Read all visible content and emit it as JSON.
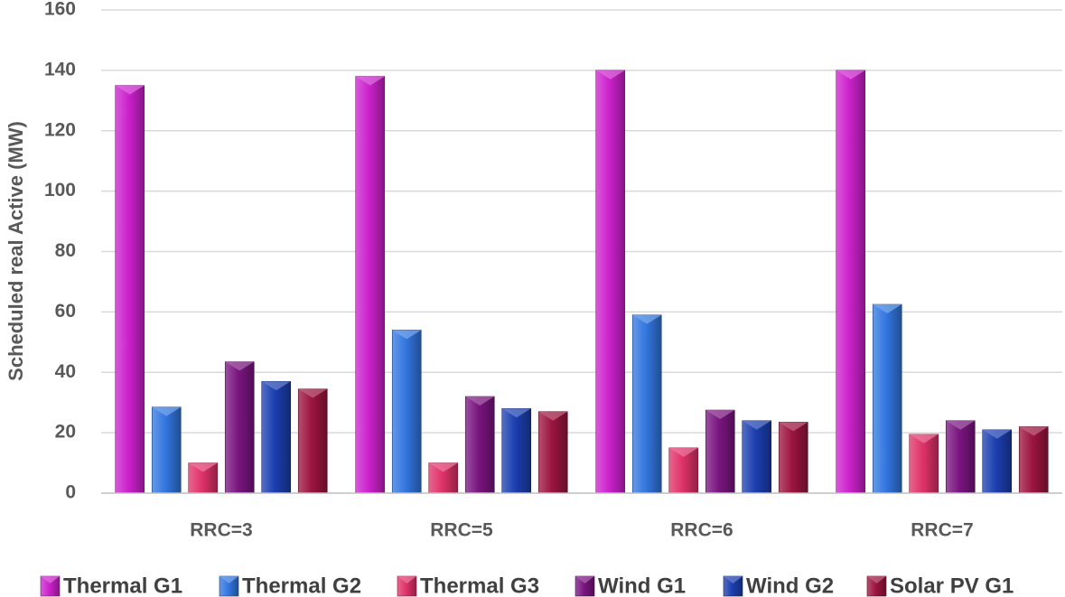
{
  "chart_data": {
    "type": "bar",
    "title": "",
    "xlabel": "",
    "ylabel": "Scheduled real Active (MW)",
    "ylim": [
      0,
      160
    ],
    "yticks": [
      0,
      20,
      40,
      60,
      80,
      100,
      120,
      140,
      160
    ],
    "grid": true,
    "legend_position": "bottom",
    "categories": [
      "RRC=3",
      "RRC=5",
      "RRC=6",
      "RRC=7"
    ],
    "series": [
      {
        "name": "Thermal G1",
        "color": "#cc22cc",
        "values": [
          135,
          138,
          140,
          140
        ]
      },
      {
        "name": "Thermal G2",
        "color": "#3377e0",
        "values": [
          28.5,
          54,
          59,
          62.5
        ]
      },
      {
        "name": "Thermal G3",
        "color": "#e0336a",
        "values": [
          10,
          10,
          15,
          19.5
        ]
      },
      {
        "name": "Wind G1",
        "color": "#7a1580",
        "values": [
          43.5,
          32,
          27.5,
          24
        ]
      },
      {
        "name": "Wind G2",
        "color": "#1c3fb0",
        "values": [
          37,
          28,
          24,
          21
        ]
      },
      {
        "name": "Solar PV G1",
        "color": "#9c1540",
        "values": [
          34.5,
          27,
          23.5,
          22
        ]
      }
    ]
  }
}
